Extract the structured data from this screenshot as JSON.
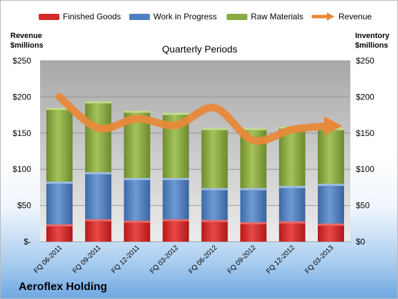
{
  "legend": [
    {
      "label": "Finished Goods",
      "color": "#d42a2a"
    },
    {
      "label": "Work in Progress",
      "color": "#4f7fc0"
    },
    {
      "label": "Raw Materials",
      "color": "#8aaa42"
    },
    {
      "label": "Revenue",
      "color": "#e8893a"
    }
  ],
  "left_axis_title": [
    "Revenue",
    "$millions"
  ],
  "right_axis_title": [
    "Inventory",
    "$millions"
  ],
  "company": "Aeroflex Holding",
  "chart_data": {
    "type": "bar",
    "subtitle": "Quarterly Periods",
    "categories": [
      "FQ 06-2011",
      "FQ 09-2011",
      "FQ 12-2011",
      "FQ 03-2012",
      "FQ 06-2012",
      "FQ 09-2012",
      "FQ 12-2012",
      "FQ 03-2013"
    ],
    "series": [
      {
        "name": "Finished Goods",
        "stack": true,
        "values": [
          24,
          31,
          29,
          31,
          30,
          27,
          28,
          25
        ]
      },
      {
        "name": "Work in Progress",
        "stack": true,
        "values": [
          59,
          65,
          59,
          57,
          44,
          47,
          49,
          55
        ]
      },
      {
        "name": "Raw Materials",
        "stack": true,
        "values": [
          102,
          98,
          93,
          90,
          83,
          83,
          82,
          77
        ]
      },
      {
        "name": "Revenue",
        "type": "line",
        "values": [
          200,
          157,
          170,
          161,
          185,
          140,
          155,
          160
        ]
      }
    ],
    "left_ticks": [
      "$250",
      "$200",
      "$150",
      "$100",
      "$50",
      "$-"
    ],
    "right_ticks": [
      "$250",
      "$200",
      "$150",
      "$100",
      "$50",
      "$0"
    ],
    "ylim": [
      0,
      250
    ],
    "grid": true
  }
}
